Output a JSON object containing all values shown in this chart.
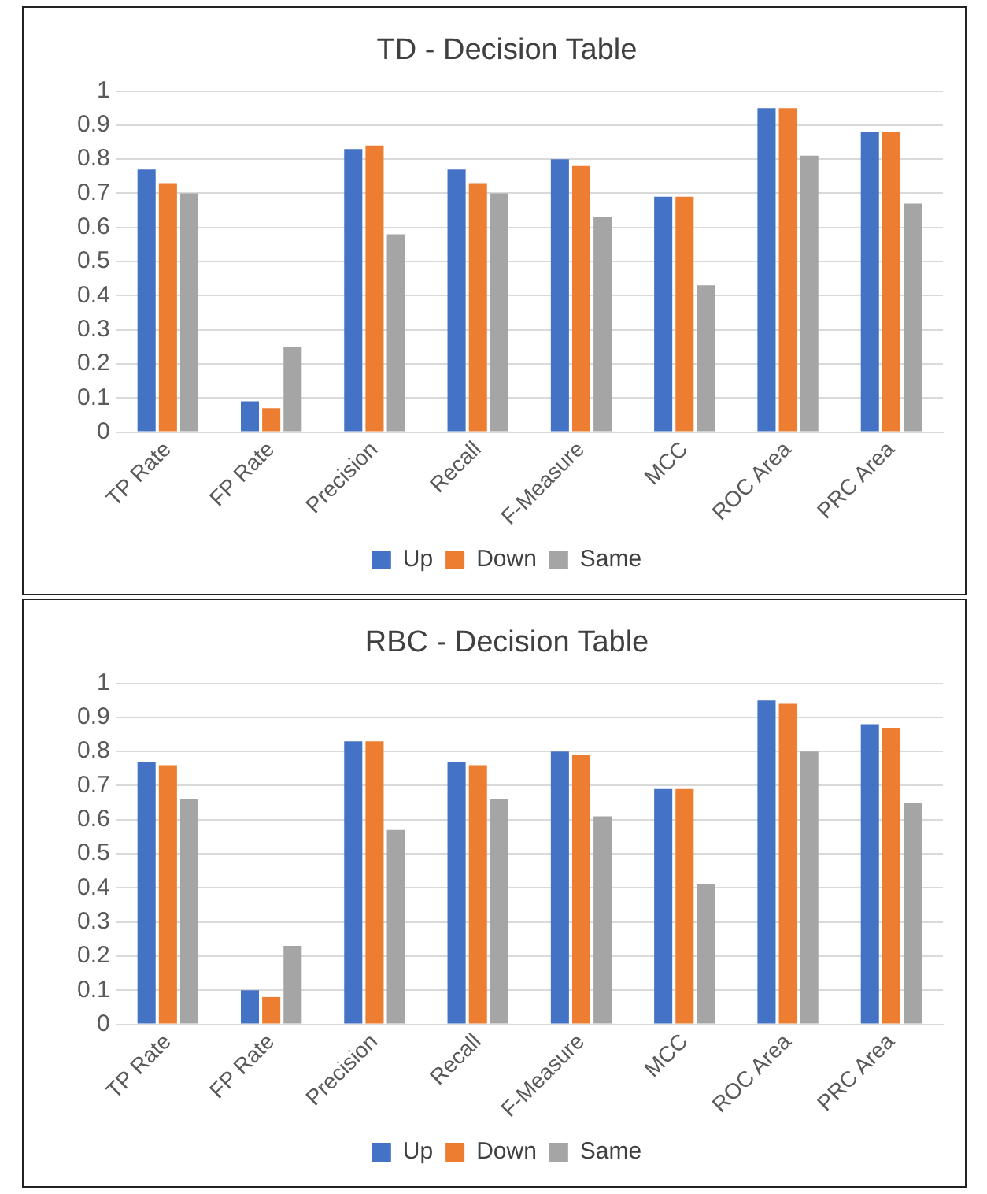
{
  "chart_data": [
    {
      "type": "bar",
      "title": "TD - Decision Table",
      "categories": [
        "TP Rate",
        "FP Rate",
        "Precision",
        "Recall",
        "F-Measure",
        "MCC",
        "ROC Area",
        "PRC Area"
      ],
      "series": [
        {
          "name": "Up",
          "color": "#4472c4",
          "values": [
            0.77,
            0.09,
            0.83,
            0.77,
            0.8,
            0.69,
            0.95,
            0.88
          ]
        },
        {
          "name": "Down",
          "color": "#ed7d31",
          "values": [
            0.73,
            0.07,
            0.84,
            0.73,
            0.78,
            0.69,
            0.95,
            0.88
          ]
        },
        {
          "name": "Same",
          "color": "#a5a5a5",
          "values": [
            0.7,
            0.25,
            0.58,
            0.7,
            0.63,
            0.43,
            0.81,
            0.67
          ]
        }
      ],
      "ylim": [
        0,
        1
      ],
      "yticks": [
        0,
        0.1,
        0.2,
        0.3,
        0.4,
        0.5,
        0.6,
        0.7,
        0.8,
        0.9,
        1
      ],
      "grid": "y",
      "legend": "bottom"
    },
    {
      "type": "bar",
      "title": "RBC - Decision Table",
      "categories": [
        "TP Rate",
        "FP Rate",
        "Precision",
        "Recall",
        "F-Measure",
        "MCC",
        "ROC Area",
        "PRC Area"
      ],
      "series": [
        {
          "name": "Up",
          "color": "#4472c4",
          "values": [
            0.77,
            0.1,
            0.83,
            0.77,
            0.8,
            0.69,
            0.95,
            0.88
          ]
        },
        {
          "name": "Down",
          "color": "#ed7d31",
          "values": [
            0.76,
            0.08,
            0.83,
            0.76,
            0.79,
            0.69,
            0.94,
            0.87
          ]
        },
        {
          "name": "Same",
          "color": "#a5a5a5",
          "values": [
            0.66,
            0.23,
            0.57,
            0.66,
            0.61,
            0.41,
            0.8,
            0.65
          ]
        }
      ],
      "ylim": [
        0,
        1
      ],
      "yticks": [
        0,
        0.1,
        0.2,
        0.3,
        0.4,
        0.5,
        0.6,
        0.7,
        0.8,
        0.9,
        1
      ],
      "grid": "y",
      "legend": "bottom"
    }
  ]
}
